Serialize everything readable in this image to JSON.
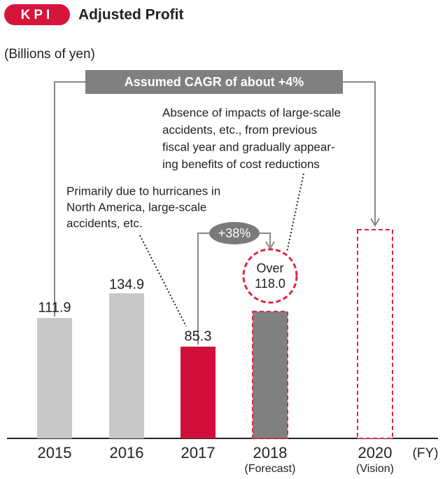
{
  "chart_data": {
    "type": "bar",
    "badge": "KPI",
    "title": "Adjusted Profit",
    "y_axis_label": "(Billions of yen)",
    "x_axis_label": "(FY)",
    "categories": [
      "2015",
      "2016",
      "2017",
      "2018",
      "2020"
    ],
    "category_notes": [
      null,
      null,
      null,
      "(Forecast)",
      "(Vision)"
    ],
    "values": [
      111.9,
      134.9,
      85.3,
      118.0,
      194
    ],
    "value_labels": [
      "111.9",
      "134.9",
      "85.3",
      "Over 118.0",
      null
    ],
    "colors": [
      "#c8c8c8",
      "#c8c8c8",
      "#d0103a",
      "#808080",
      "#ffffff"
    ],
    "dashed": [
      false,
      false,
      false,
      true,
      true
    ],
    "outline_color": "#e0263e",
    "ylim": [
      0,
      250
    ],
    "cagr_label": "Assumed CAGR of about +4%",
    "growth_label": "+38%",
    "annotations": [
      [
        "Primarily due to hurricanes in",
        "North America, large-scale",
        "accidents, etc."
      ],
      [
        "Absence of impacts of large-scale",
        "accidents, etc., from previous",
        "fiscal year and gradually appear-",
        "ing benefits of cost reductions"
      ]
    ]
  }
}
